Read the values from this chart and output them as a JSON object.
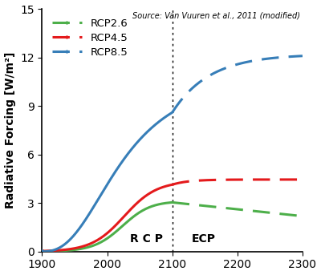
{
  "source_text": "Source: Van Vuuren et al., 2011 (modified)",
  "ylabel": "Radiative Forcing [W/m²]",
  "xlim": [
    1900,
    2300
  ],
  "ylim": [
    0,
    15
  ],
  "yticks": [
    0,
    3,
    6,
    9,
    12,
    15
  ],
  "xticks": [
    1900,
    2000,
    2100,
    2200,
    2300
  ],
  "rcp_line_color_26": "#4daf4a",
  "rcp_line_color_45": "#e41a1c",
  "rcp_line_color_85": "#377eb8",
  "vline_x": 2100,
  "legend_labels": [
    "RCP2.6",
    "RCP4.5",
    "RCP8.5"
  ],
  "background_color": "#ffffff",
  "rcp_label": "R C P",
  "ecp_label": "ECP"
}
